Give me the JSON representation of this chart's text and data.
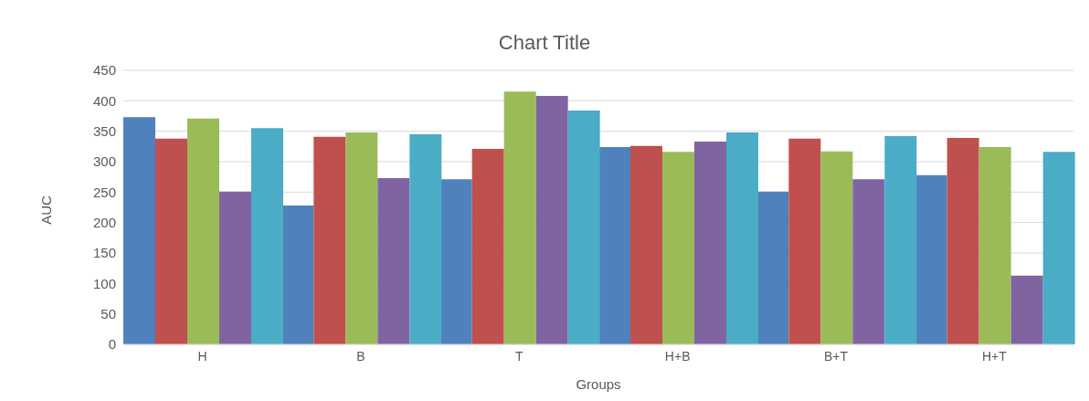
{
  "chart_data": {
    "type": "bar",
    "title": "Chart Title",
    "xlabel": "Groups",
    "ylabel": "AUC",
    "categories": [
      "H",
      "B",
      "T",
      "H+B",
      "B+T",
      "H+T"
    ],
    "series": [
      {
        "color": "#4f81bd",
        "values": [
          373,
          228,
          271,
          324,
          251,
          278
        ]
      },
      {
        "color": "#c0504d",
        "values": [
          338,
          341,
          321,
          326,
          338,
          339
        ]
      },
      {
        "color": "#9bbb59",
        "values": [
          371,
          348,
          415,
          316,
          317,
          324
        ]
      },
      {
        "color": "#8064a2",
        "values": [
          251,
          273,
          408,
          333,
          271,
          113
        ]
      },
      {
        "color": "#4bacc6",
        "values": [
          355,
          345,
          384,
          348,
          342,
          316
        ]
      }
    ],
    "ylim": [
      0,
      450
    ],
    "yticks": [
      0,
      50,
      100,
      150,
      200,
      250,
      300,
      350,
      400,
      450
    ],
    "grid": "y"
  }
}
